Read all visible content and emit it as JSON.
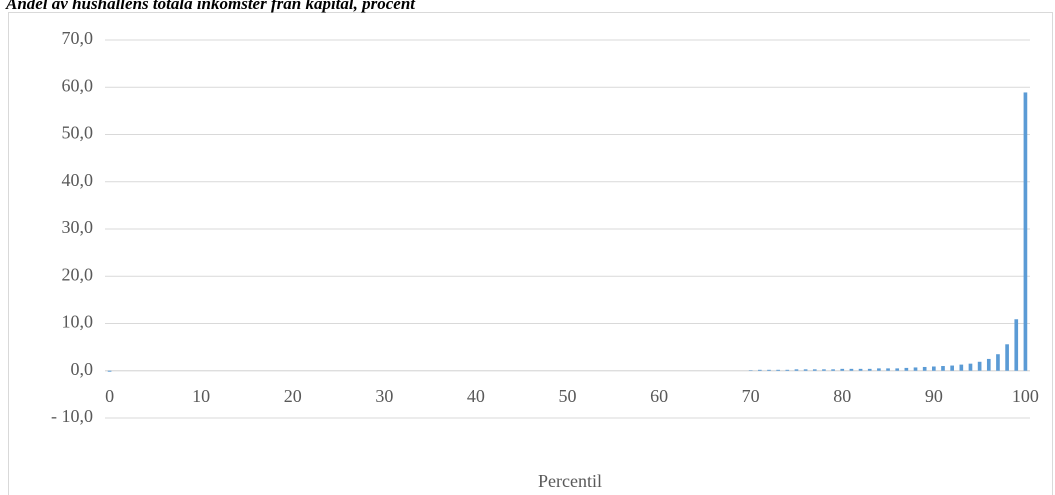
{
  "chart_data": {
    "type": "bar",
    "title": "Andel av hushållens totala inkomster från kapital, procent",
    "x_label": "Percentil",
    "color": "#5b9bd5",
    "grid": true,
    "x": [
      0,
      1,
      2,
      3,
      4,
      5,
      6,
      7,
      8,
      9,
      10,
      11,
      12,
      13,
      14,
      15,
      16,
      17,
      18,
      19,
      20,
      21,
      22,
      23,
      24,
      25,
      26,
      27,
      28,
      29,
      30,
      31,
      32,
      33,
      34,
      35,
      36,
      37,
      38,
      39,
      40,
      41,
      42,
      43,
      44,
      45,
      46,
      47,
      48,
      49,
      50,
      51,
      52,
      53,
      54,
      55,
      56,
      57,
      58,
      59,
      60,
      61,
      62,
      63,
      64,
      65,
      66,
      67,
      68,
      69,
      70,
      71,
      72,
      73,
      74,
      75,
      76,
      77,
      78,
      79,
      80,
      81,
      82,
      83,
      84,
      85,
      86,
      87,
      88,
      89,
      90,
      91,
      92,
      93,
      94,
      95,
      96,
      97,
      98,
      99,
      100
    ],
    "values": [
      -0.2,
      0,
      0,
      0,
      0,
      0,
      0,
      0,
      0,
      0,
      0,
      0,
      0,
      0,
      0,
      0,
      0,
      0,
      0,
      0,
      0,
      0,
      0,
      0,
      0,
      0,
      0,
      0,
      0,
      0,
      0,
      0,
      0,
      0,
      0,
      0,
      0,
      0,
      0,
      0,
      0,
      0,
      0,
      0,
      0,
      0,
      0,
      0,
      0,
      0,
      0,
      0,
      0,
      0,
      0,
      0,
      0,
      0,
      0,
      0,
      0,
      0,
      0,
      0,
      0,
      0,
      0,
      0,
      0,
      0,
      0.1,
      0.2,
      0.2,
      0.2,
      0.2,
      0.3,
      0.3,
      0.3,
      0.3,
      0.3,
      0.4,
      0.4,
      0.4,
      0.4,
      0.5,
      0.5,
      0.5,
      0.6,
      0.7,
      0.8,
      0.9,
      1.0,
      1.1,
      1.3,
      1.5,
      1.9,
      2.5,
      3.5,
      5.6,
      10.9,
      58.9
    ],
    "xlim": [
      -0.5,
      100.5
    ],
    "xticks": [
      0,
      10,
      20,
      30,
      40,
      50,
      60,
      70,
      80,
      90,
      100
    ],
    "ylim": [
      -10,
      70
    ],
    "yticks": [
      {
        "value": -10,
        "label": "- 10,0"
      },
      {
        "value": 0,
        "label": "0,0"
      },
      {
        "value": 10,
        "label": "10,0"
      },
      {
        "value": 20,
        "label": "20,0"
      },
      {
        "value": 30,
        "label": "30,0"
      },
      {
        "value": 40,
        "label": "40,0"
      },
      {
        "value": 50,
        "label": "50,0"
      },
      {
        "value": 60,
        "label": "60,0"
      },
      {
        "value": 70,
        "label": "70,0"
      }
    ]
  }
}
